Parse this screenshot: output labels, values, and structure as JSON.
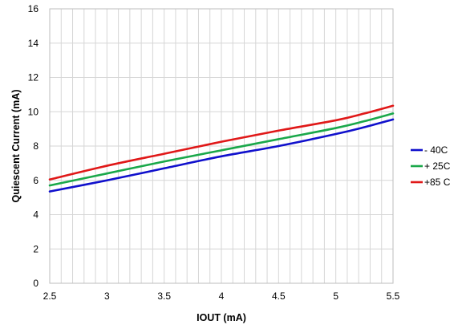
{
  "chart_data": {
    "type": "line",
    "xlabel": "IOUT (mA)",
    "ylabel": "Quiescent Current (mA)",
    "xlim": [
      2.5,
      5.5
    ],
    "ylim": [
      0,
      16
    ],
    "x_ticks": [
      "2.5",
      "3",
      "3.5",
      "4",
      "4.5",
      "5",
      "5.5"
    ],
    "y_ticks": [
      "0",
      "2",
      "4",
      "6",
      "8",
      "10",
      "12",
      "14",
      "16"
    ],
    "grid": true,
    "legend_position": "right",
    "series": [
      {
        "name": "- 40C",
        "color": "#1010cc",
        "x": [
          2.5,
          3.0,
          3.5,
          4.0,
          4.5,
          5.0,
          5.25,
          5.5
        ],
        "y": [
          5.35,
          6.0,
          6.7,
          7.4,
          8.0,
          8.7,
          9.1,
          9.55
        ]
      },
      {
        "name": "+ 25C",
        "color": "#1aa84a",
        "x": [
          2.5,
          3.0,
          3.5,
          4.0,
          4.5,
          5.0,
          5.25,
          5.5
        ],
        "y": [
          5.7,
          6.4,
          7.1,
          7.75,
          8.4,
          9.05,
          9.45,
          9.9
        ]
      },
      {
        "name": "+85 C",
        "color": "#e01818",
        "x": [
          2.5,
          3.0,
          3.5,
          4.0,
          4.5,
          5.0,
          5.25,
          5.5
        ],
        "y": [
          6.05,
          6.85,
          7.55,
          8.25,
          8.9,
          9.5,
          9.9,
          10.35
        ]
      }
    ]
  }
}
